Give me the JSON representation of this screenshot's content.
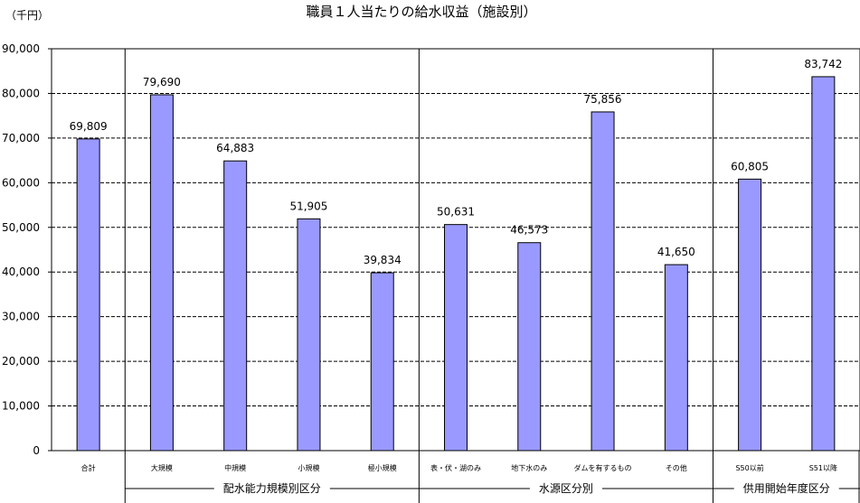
{
  "chart_data": {
    "type": "bar",
    "title": "職員１人当たりの給水収益（施設別）",
    "unit_label": "（千円）",
    "ylim": [
      0,
      90000
    ],
    "yticks": [
      "0",
      "10,000",
      "20,000",
      "30,000",
      "40,000",
      "50,000",
      "60,000",
      "70,000",
      "80,000",
      "90,000"
    ],
    "grid": true,
    "bar_color": "#9999ff",
    "categories": [
      "合計",
      "大規模",
      "中規模",
      "小規模",
      "極小規模",
      "表・伏・湖のみ",
      "地下水のみ",
      "ダムを有するもの",
      "その他",
      "S50以前",
      "S51以降"
    ],
    "values": [
      69809,
      79690,
      64883,
      51905,
      39834,
      50631,
      46573,
      75856,
      41650,
      60805,
      83742
    ],
    "value_labels": [
      "69,809",
      "79,690",
      "64,883",
      "51,905",
      "39,834",
      "50,631",
      "46,573",
      "75,856",
      "41,650",
      "60,805",
      "83,742"
    ],
    "groups": [
      {
        "label": "配水能力規模別区分",
        "first": 1,
        "last": 4
      },
      {
        "label": "水源区分別",
        "first": 5,
        "last": 8
      },
      {
        "label": "供用開始年度区分",
        "first": 9,
        "last": 10
      }
    ]
  }
}
